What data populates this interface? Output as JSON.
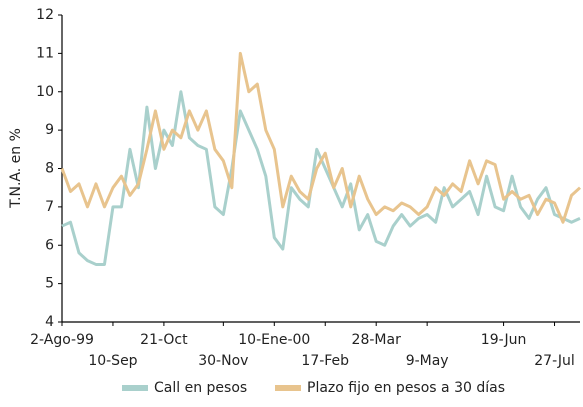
{
  "chart_data": {
    "type": "line",
    "y_label": "T.N.A. en %",
    "categories": [
      "2-Ago-99",
      null,
      null,
      null,
      null,
      null,
      "10-Sep",
      null,
      null,
      null,
      null,
      null,
      "21-Oct",
      null,
      null,
      null,
      null,
      null,
      null,
      "30-Nov",
      null,
      null,
      null,
      null,
      null,
      "10-Ene-00",
      null,
      null,
      null,
      null,
      null,
      "17-Feb",
      null,
      null,
      null,
      null,
      null,
      "28-Mar",
      null,
      null,
      null,
      null,
      null,
      "9-May",
      null,
      null,
      null,
      null,
      null,
      null,
      null,
      null,
      "19-Jun",
      null,
      null,
      null,
      null,
      null,
      "27-Jul",
      null,
      null,
      null
    ],
    "series": [
      {
        "name": "Call en pesos",
        "color": "#a9d0cc",
        "values": [
          6.5,
          6.6,
          5.8,
          5.6,
          5.5,
          5.5,
          7.0,
          7.0,
          8.5,
          7.5,
          9.6,
          8.0,
          9.0,
          8.6,
          10.0,
          8.8,
          8.6,
          8.5,
          7.0,
          6.8,
          8.0,
          9.5,
          9.0,
          8.5,
          7.8,
          6.2,
          5.9,
          7.5,
          7.2,
          7.0,
          8.5,
          8.0,
          7.5,
          7.0,
          7.6,
          6.4,
          6.8,
          6.1,
          6.0,
          6.5,
          6.8,
          6.5,
          6.7,
          6.8,
          6.6,
          7.5,
          7.0,
          7.2,
          7.4,
          6.8,
          7.8,
          7.0,
          6.9,
          7.8,
          7.0,
          6.7,
          7.2,
          7.5,
          6.8,
          6.7,
          6.6,
          6.7
        ]
      },
      {
        "name": "Plazo fijo en pesos a 30 días",
        "color": "#e8c48e",
        "values": [
          8.0,
          7.4,
          7.6,
          7.0,
          7.6,
          7.0,
          7.5,
          7.8,
          7.3,
          7.6,
          8.5,
          9.5,
          8.5,
          9.0,
          8.8,
          9.5,
          9.0,
          9.5,
          8.5,
          8.2,
          7.5,
          11.0,
          10.0,
          10.2,
          9.0,
          8.5,
          7.0,
          7.8,
          7.4,
          7.2,
          8.0,
          8.4,
          7.5,
          8.0,
          7.0,
          7.8,
          7.2,
          6.8,
          7.0,
          6.9,
          7.1,
          7.0,
          6.8,
          7.0,
          7.5,
          7.3,
          7.6,
          7.4,
          8.2,
          7.6,
          8.2,
          8.1,
          7.2,
          7.4,
          7.2,
          7.3,
          6.8,
          7.2,
          7.1,
          6.6,
          7.3,
          7.5
        ]
      }
    ],
    "ylim": [
      4,
      12
    ],
    "yticks": [
      4,
      5,
      6,
      7,
      8,
      9,
      10,
      11,
      12
    ]
  }
}
